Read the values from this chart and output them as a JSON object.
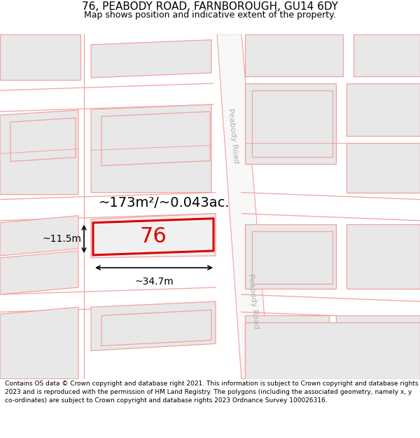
{
  "title": "76, PEABODY ROAD, FARNBOROUGH, GU14 6DY",
  "subtitle": "Map shows position and indicative extent of the property.",
  "footer": "Contains OS data © Crown copyright and database right 2021. This information is subject to Crown copyright and database rights 2023 and is reproduced with the permission of HM Land Registry. The polygons (including the associated geometry, namely x, y co-ordinates) are subject to Crown copyright and database rights 2023 Ordnance Survey 100026316.",
  "background_color": "#ffffff",
  "line_color": "#f5a0a0",
  "highlight_color": "#dd0000",
  "area_text": "~173m²/~0.043ac.",
  "number_text": "76",
  "dim_width": "~34.7m",
  "dim_height": "~11.5m",
  "road_label": "Peabody Road",
  "figsize": [
    6.0,
    6.25
  ],
  "dpi": 100
}
